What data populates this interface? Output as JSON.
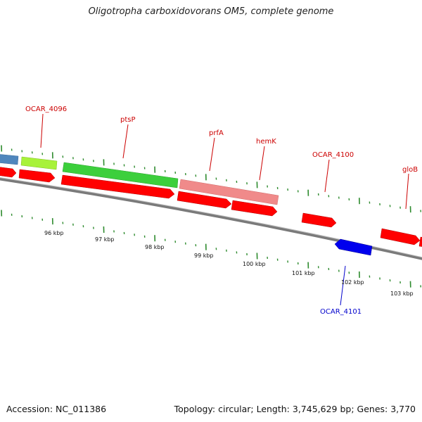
{
  "title": "Oligotropha carboxidovorans OM5, complete genome",
  "footer": {
    "accession": "Accession: NC_011386",
    "summary": "Topology: circular; Length: 3,745,629 bp; Genes: 3,770"
  },
  "colors": {
    "backbone": "#7a7a7a",
    "tick": "#2e8b2e",
    "forward_cds": "#ff0000",
    "reverse_cds": "#0000ee",
    "label_forward": "#cc0000",
    "label_reverse": "#0000cc",
    "gene_steelblue": "#4f86bd",
    "gene_yellowgreen": "#a8f23a",
    "gene_green": "#3ccf3c",
    "gene_salmon": "#f08a8a"
  },
  "gene_labels": [
    {
      "text": "OCAR_4096",
      "strand": "forward"
    },
    {
      "text": "ptsP",
      "strand": "forward"
    },
    {
      "text": "prfA",
      "strand": "forward"
    },
    {
      "text": "hemK",
      "strand": "forward"
    },
    {
      "text": "OCAR_4100",
      "strand": "forward"
    },
    {
      "text": "gloB",
      "strand": "forward"
    },
    {
      "text": "OCAR_4101",
      "strand": "reverse"
    }
  ],
  "kbp_labels": [
    "96 kbp",
    "97 kbp",
    "98 kbp",
    "99 kbp",
    "100 kbp",
    "101 kbp",
    "102 kbp",
    "103 kbp"
  ]
}
